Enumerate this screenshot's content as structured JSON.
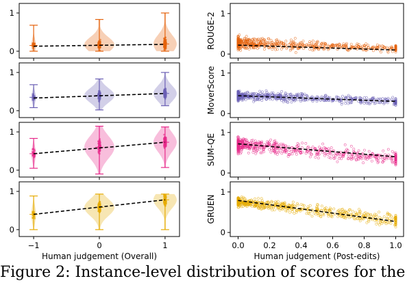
{
  "caption": "Figure 2:  Instance-level distribution of scores for the",
  "chart_data": [
    {
      "type": "violin",
      "xlabel": "Human judgement (Overall)",
      "x_ticks": [
        -1,
        0,
        1
      ],
      "x_tick_labels": [
        "−1",
        "0",
        "1"
      ],
      "y_ticks": [
        0,
        1
      ],
      "y_tick_labels": [
        "0",
        "1"
      ],
      "panels": [
        {
          "color": "#e4620c",
          "trend": [
            [
              -1,
              0.13
            ],
            [
              1,
              0.18
            ]
          ],
          "violins": [
            {
              "x": -1,
              "min": 0.0,
              "max": 0.68,
              "median": 0.15
            },
            {
              "x": 0,
              "min": 0.0,
              "max": 0.83,
              "median": 0.17
            },
            {
              "x": 1,
              "min": 0.0,
              "max": 1.0,
              "median": 0.19
            }
          ]
        },
        {
          "color": "#6a5fb4",
          "trend": [
            [
              -1,
              0.33
            ],
            [
              1,
              0.45
            ]
          ],
          "violins": [
            {
              "x": -1,
              "min": 0.08,
              "max": 0.68,
              "median": 0.35
            },
            {
              "x": 0,
              "min": 0.02,
              "max": 0.83,
              "median": 0.4
            },
            {
              "x": 1,
              "min": 0.13,
              "max": 1.0,
              "median": 0.45
            }
          ]
        },
        {
          "color": "#e7298a",
          "trend": [
            [
              -1,
              0.43
            ],
            [
              1,
              0.73
            ]
          ],
          "violins": [
            {
              "x": -1,
              "min": 0.05,
              "max": 0.83,
              "median": 0.43
            },
            {
              "x": 0,
              "min": -0.1,
              "max": 1.15,
              "median": 0.6
            },
            {
              "x": 1,
              "min": 0.07,
              "max": 1.13,
              "median": 0.73
            }
          ]
        },
        {
          "color": "#e6ab02",
          "trend": [
            [
              -1,
              0.4
            ],
            [
              1,
              0.78
            ]
          ],
          "violins": [
            {
              "x": -1,
              "min": 0.0,
              "max": 0.88,
              "median": 0.4
            },
            {
              "x": 0,
              "min": 0.0,
              "max": 0.93,
              "median": 0.58
            },
            {
              "x": 1,
              "min": 0.0,
              "max": 0.93,
              "median": 0.78
            }
          ]
        }
      ]
    },
    {
      "type": "scatter",
      "xlabel": "Human judgement (Post-edits)",
      "x_ticks": [
        0.0,
        0.2,
        0.4,
        0.6,
        0.8,
        1.0
      ],
      "x_tick_labels": [
        "0.0",
        "0.2",
        "0.4",
        "0.6",
        "0.8",
        "1.0"
      ],
      "y_ticks": [
        0,
        1
      ],
      "y_tick_labels": [
        "0",
        "1"
      ],
      "panels": [
        {
          "name": "ROUGE-2",
          "color": "#e4620c",
          "trend": [
            [
              0,
              0.22
            ],
            [
              1,
              0.1
            ]
          ],
          "band": [
            {
              "x": 0,
              "lo": 0.0,
              "hi": 0.55
            },
            {
              "x": 0.5,
              "lo": 0.0,
              "hi": 0.4
            },
            {
              "x": 1,
              "lo": 0.0,
              "hi": 0.28
            }
          ]
        },
        {
          "name": "MoverScore",
          "color": "#6a5fb4",
          "trend": [
            [
              0,
              0.44
            ],
            [
              1,
              0.3
            ]
          ],
          "band": [
            {
              "x": 0,
              "lo": 0.22,
              "hi": 0.66
            },
            {
              "x": 0.5,
              "lo": 0.2,
              "hi": 0.55
            },
            {
              "x": 1,
              "lo": 0.12,
              "hi": 0.48
            }
          ]
        },
        {
          "name": "SUM-QE",
          "color": "#e7298a",
          "trend": [
            [
              0,
              0.72
            ],
            [
              1,
              0.4
            ]
          ],
          "band": [
            {
              "x": 0,
              "lo": 0.38,
              "hi": 1.02
            },
            {
              "x": 0.5,
              "lo": 0.22,
              "hi": 0.82
            },
            {
              "x": 1,
              "lo": 0.08,
              "hi": 0.65
            }
          ]
        },
        {
          "name": "GRUEN",
          "color": "#e6ab02",
          "trend": [
            [
              0,
              0.79
            ],
            [
              1,
              0.27
            ]
          ],
          "band": [
            {
              "x": 0,
              "lo": 0.55,
              "hi": 0.97
            },
            {
              "x": 0.5,
              "lo": 0.3,
              "hi": 0.8
            },
            {
              "x": 1,
              "lo": 0.0,
              "hi": 0.6
            }
          ]
        }
      ]
    }
  ]
}
